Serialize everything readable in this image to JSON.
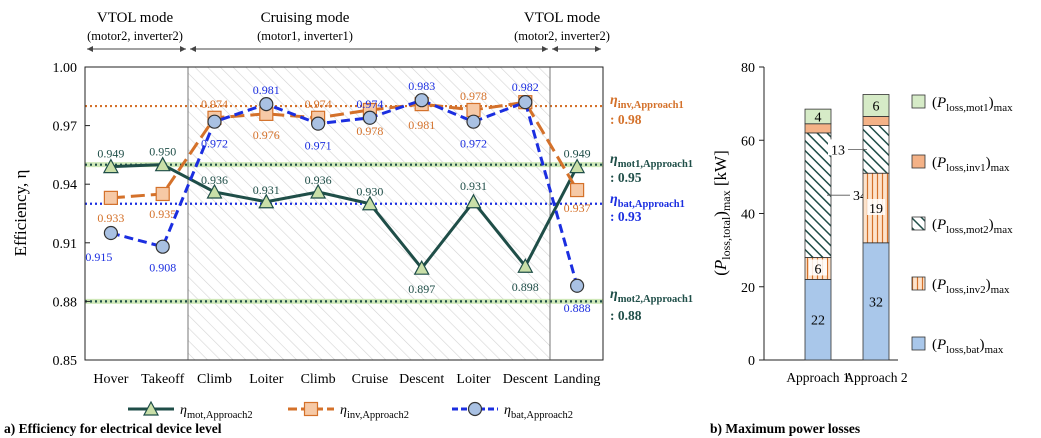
{
  "colors": {
    "mot": "#1f4e48",
    "mot_fill": "#c9dfa8",
    "inv": "#d4712a",
    "inv_fill": "#f6c9a6",
    "bat": "#1b2ee0",
    "bat_fill": "#a9c1e3",
    "ref_mot1": "#1f4e48",
    "ref_mot2": "#1f4e48",
    "bar_bat": "#a9c7ea",
    "bar_inv2": "#f8d7b8",
    "bar_mot2": "#ffffff",
    "bar_inv1": "#f4b287",
    "bar_mot1": "#d6ebc7"
  },
  "chart_data": [
    {
      "type": "line",
      "panel_caption": "a) Efficiency for electrical device level",
      "ylabel": "Efficiency, η",
      "ylim": [
        0.85,
        1.0
      ],
      "yticks": [
        "0.85",
        "0.88",
        "0.91",
        "0.94",
        "0.97",
        "1.00"
      ],
      "ytick_values": [
        0.85,
        0.88,
        0.91,
        0.94,
        0.97,
        1.0
      ],
      "categories": [
        "Hover",
        "Takeoff",
        "Climb",
        "Loiter",
        "Climb",
        "Cruise",
        "Descent",
        "Loiter",
        "Descent",
        "Landing"
      ],
      "grid": false,
      "legend_position": "bottom",
      "modes": [
        {
          "title": "VTOL mode",
          "detail": "(motor2, inverter2)"
        },
        {
          "title": "Cruising mode",
          "detail": "(motor1, inverter1)"
        },
        {
          "title": "VTOL mode",
          "detail": "(motor2, inverter2)"
        }
      ],
      "series": [
        {
          "key": "mot",
          "name": "η",
          "name_sub": "mot,Approach2",
          "values": [
            0.949,
            0.95,
            0.936,
            0.931,
            0.936,
            0.93,
            0.897,
            0.931,
            0.898,
            0.949
          ],
          "labels": [
            "0.949",
            "0.950",
            "0.936",
            "0.931",
            "0.936",
            "0.930",
            "0.897",
            "0.931",
            "0.898",
            "0.949"
          ]
        },
        {
          "key": "inv",
          "name": "η",
          "name_sub": "inv,Approach2",
          "values": [
            0.933,
            0.935,
            0.974,
            0.976,
            0.974,
            0.978,
            0.981,
            0.978,
            0.982,
            0.937
          ],
          "labels": [
            "0.933",
            "0.935",
            "0.974",
            "0.976",
            "0.974",
            "0.978",
            "0.981",
            "0.978",
            "",
            "0.937"
          ]
        },
        {
          "key": "bat",
          "name": "η",
          "name_sub": "bat,Approach2",
          "values": [
            0.915,
            0.908,
            0.972,
            0.981,
            0.971,
            0.974,
            0.983,
            0.972,
            0.982,
            0.888
          ],
          "labels": [
            "0.915",
            "0.908",
            "0.972",
            "0.981",
            "0.971",
            "0.974",
            "0.983",
            "0.972",
            "0.982",
            "0.888"
          ]
        }
      ],
      "reference_lines": [
        {
          "key": "inv",
          "name": "η",
          "name_sub": "inv,Approach1",
          "value": 0.98,
          "value_label": ": 0.98"
        },
        {
          "key": "mot1",
          "name": "η",
          "name_sub": "mot1,Approach1",
          "value": 0.95,
          "value_label": ": 0.95"
        },
        {
          "key": "bat",
          "name": "η",
          "name_sub": "bat,Approach1",
          "value": 0.93,
          "value_label": ": 0.93"
        },
        {
          "key": "mot2",
          "name": "η",
          "name_sub": "mot2,Approach1",
          "value": 0.88,
          "value_label": ": 0.88"
        }
      ]
    },
    {
      "type": "bar",
      "stacked": true,
      "panel_caption": "b) Maximum power losses",
      "ylabel": "(P_loss,total)max [kW]",
      "ylabel_parts": {
        "p": "P",
        "sub": "loss,total",
        "tail": "max",
        "unit": "[kW]"
      },
      "ylim": [
        0,
        80
      ],
      "yticks": [
        "0",
        "20",
        "40",
        "60",
        "80"
      ],
      "ytick_values": [
        0,
        20,
        40,
        60,
        80
      ],
      "categories": [
        "Approach 1",
        "Approach 2"
      ],
      "series": [
        {
          "key": "bat",
          "name": "(P_loss,bat)max",
          "sub": "loss,bat",
          "values": [
            22,
            32
          ],
          "labels": [
            "22",
            "32"
          ]
        },
        {
          "key": "inv2",
          "name": "(P_loss,inv2)max",
          "sub": "loss,inv2",
          "values": [
            6,
            19
          ],
          "labels": [
            "6",
            "19"
          ]
        },
        {
          "key": "mot2",
          "name": "(P_loss,mot2)max",
          "sub": "loss,mot2",
          "values": [
            34,
            13
          ],
          "labels": [
            "34",
            "13"
          ]
        },
        {
          "key": "inv1",
          "name": "(P_loss,inv1)max",
          "sub": "loss,inv1",
          "values": [
            2.5,
            2.5
          ],
          "labels": [
            "",
            ""
          ]
        },
        {
          "key": "mot1",
          "name": "(P_loss,mot1)max",
          "sub": "loss,mot1",
          "values": [
            4,
            6
          ],
          "labels": [
            "4",
            "6"
          ]
        }
      ],
      "legend_order": [
        "mot1",
        "inv1",
        "mot2",
        "inv2",
        "bat"
      ],
      "legend_tail": "max"
    }
  ]
}
